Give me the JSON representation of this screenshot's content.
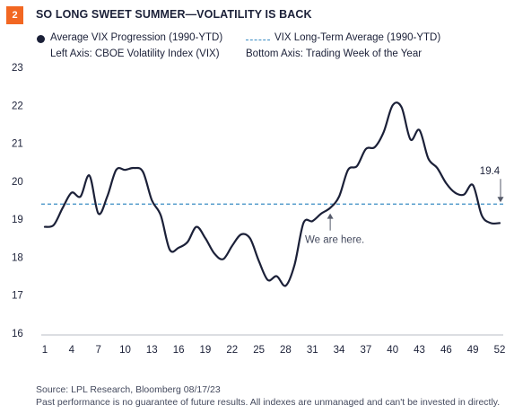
{
  "figure": {
    "number": "2",
    "title": "SO LONG SWEET SUMMER—VOLATILITY IS BACK"
  },
  "legend": {
    "series_label": "Average VIX Progression (1990-YTD)",
    "average_label": "VIX Long-Term Average (1990-YTD)",
    "left_axis_note": "Left Axis: CBOE Volatility Index (VIX)",
    "bottom_axis_note": "Bottom Axis: Trading Week of the Year"
  },
  "footer": {
    "source": "Source: LPL Research, Bloomberg 08/17/23",
    "disclaimer": "Past performance is no guarantee of future results. All indexes are unmanaged and can't be invested in directly."
  },
  "colors": {
    "series": "#1b2038",
    "average": "#3a8dc4",
    "badge": "#f26722",
    "annotation": "#555a6a"
  },
  "chart_data": {
    "type": "line",
    "title": "SO LONG SWEET SUMMER—VOLATILITY IS BACK",
    "xlabel": "Trading Week of the Year",
    "ylabel": "CBOE Volatility Index (VIX)",
    "ylim": [
      16,
      23
    ],
    "xlim": [
      1,
      52
    ],
    "grid": false,
    "legend_position": "top",
    "x_ticks": [
      1,
      4,
      7,
      10,
      13,
      16,
      19,
      22,
      25,
      28,
      31,
      34,
      37,
      40,
      43,
      46,
      49,
      52
    ],
    "y_ticks": [
      16,
      17,
      18,
      19,
      20,
      21,
      22,
      23
    ],
    "series": [
      {
        "name": "Average VIX Progression (1990-YTD)",
        "x": [
          1,
          2,
          3,
          4,
          5,
          6,
          7,
          8,
          9,
          10,
          11,
          12,
          13,
          14,
          15,
          16,
          17,
          18,
          19,
          20,
          21,
          22,
          23,
          24,
          25,
          26,
          27,
          28,
          29,
          30,
          31,
          32,
          33,
          34,
          35,
          36,
          37,
          38,
          39,
          40,
          41,
          42,
          43,
          44,
          45,
          46,
          47,
          48,
          49,
          50,
          51,
          52
        ],
        "values": [
          18.8,
          18.85,
          19.3,
          19.7,
          19.6,
          20.15,
          19.15,
          19.6,
          20.3,
          20.3,
          20.35,
          20.25,
          19.5,
          19.1,
          18.2,
          18.25,
          18.4,
          18.8,
          18.5,
          18.1,
          17.95,
          18.3,
          18.6,
          18.5,
          17.9,
          17.4,
          17.5,
          17.25,
          17.8,
          18.9,
          18.95,
          19.15,
          19.3,
          19.6,
          20.3,
          20.4,
          20.85,
          20.9,
          21.3,
          22.0,
          21.95,
          21.1,
          21.35,
          20.6,
          20.35,
          19.95,
          19.7,
          19.65,
          19.9,
          19.1,
          18.9,
          18.9
        ]
      }
    ],
    "reference_line": {
      "name": "VIX Long-Term Average (1990-YTD)",
      "value": 19.4
    },
    "annotations": [
      {
        "text": "19.4",
        "x": 52,
        "y": 19.4
      },
      {
        "text": "We are here.",
        "x": 33,
        "y": 19.2
      }
    ]
  }
}
